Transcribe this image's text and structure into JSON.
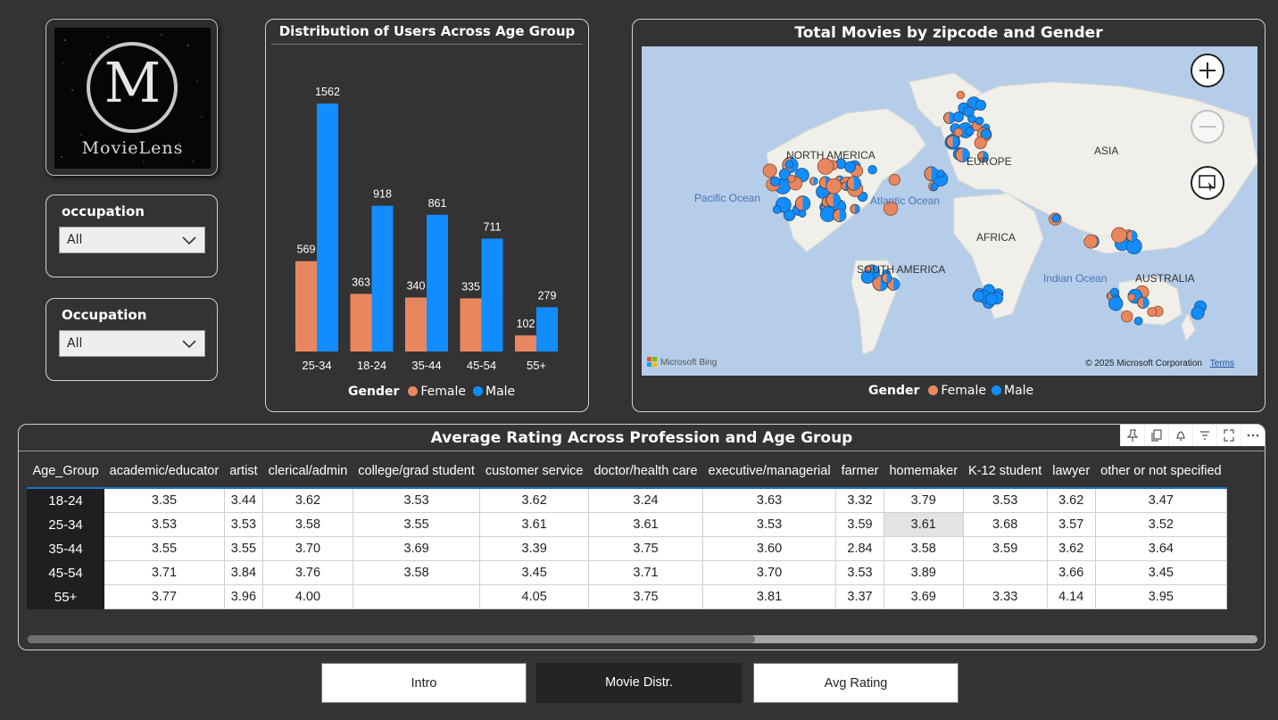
{
  "logo": {
    "letter": "M",
    "text": "MovieLens"
  },
  "slicers": [
    {
      "label": "occupation",
      "value": "All"
    },
    {
      "label": "Occupation",
      "value": "All"
    }
  ],
  "bar_chart": {
    "legend_title": "Gender",
    "legend_female": "Female",
    "legend_male": "Male"
  },
  "chart_data": {
    "type": "bar",
    "title": "Distribution of Users Across Age Group",
    "categories": [
      "25-34",
      "18-24",
      "35-44",
      "45-54",
      "55+"
    ],
    "series": [
      {
        "name": "Female",
        "color": "#e8875f",
        "values": [
          569,
          363,
          340,
          335,
          102
        ]
      },
      {
        "name": "Male",
        "color": "#118dff",
        "values": [
          1562,
          918,
          861,
          711,
          279
        ]
      }
    ],
    "legend_title": "Gender",
    "legend_position": "bottom-center",
    "ylim": [
      0,
      1562
    ],
    "grid": false
  },
  "map": {
    "title": "Total Movies by zipcode and Gender",
    "legend_title": "Gender",
    "legend_female": "Female",
    "legend_male": "Male",
    "labels": {
      "north_america": "NORTH AMERICA",
      "europe": "EUROPE",
      "asia": "ASIA",
      "africa": "AFRICA",
      "south_america": "SOUTH AMERICA",
      "australia": "AUSTRALIA",
      "pacific": "Pacific Ocean",
      "atlantic": "Atlantic Ocean",
      "indian": "Indian Ocean"
    },
    "attribution": "Microsoft Bing",
    "copyright": "© 2025 Microsoft Corporation",
    "terms": "Terms",
    "female_color": "#e8875f",
    "male_color": "#118dff"
  },
  "table": {
    "title": "Average Rating Across Profession and Age Group",
    "columns": [
      "Age_Group",
      "academic/educator",
      "artist",
      "clerical/admin",
      "college/grad student",
      "customer service",
      "doctor/health care",
      "executive/managerial",
      "farmer",
      "homemaker",
      "K-12 student",
      "lawyer",
      "other or not specified"
    ],
    "rows": [
      [
        "18-24",
        "3.35",
        "3.44",
        "3.62",
        "3.53",
        "3.62",
        "3.24",
        "3.63",
        "3.32",
        "3.79",
        "3.53",
        "3.62",
        "3.47"
      ],
      [
        "25-34",
        "3.53",
        "3.53",
        "3.58",
        "3.55",
        "3.61",
        "3.61",
        "3.53",
        "3.59",
        "3.61",
        "3.68",
        "3.57",
        "3.52"
      ],
      [
        "35-44",
        "3.55",
        "3.55",
        "3.70",
        "3.69",
        "3.39",
        "3.75",
        "3.60",
        "2.84",
        "3.58",
        "3.59",
        "3.62",
        "3.64"
      ],
      [
        "45-54",
        "3.71",
        "3.84",
        "3.76",
        "3.58",
        "3.45",
        "3.71",
        "3.70",
        "3.53",
        "3.89",
        "",
        "3.66",
        "3.45"
      ],
      [
        "55+",
        "3.77",
        "3.96",
        "4.00",
        "",
        "4.05",
        "3.75",
        "3.81",
        "3.37",
        "3.69",
        "3.33",
        "4.14",
        "3.95"
      ]
    ]
  },
  "nav": {
    "intro": "Intro",
    "movie_distr": "Movie Distr.",
    "avg_rating": "Avg Rating"
  }
}
